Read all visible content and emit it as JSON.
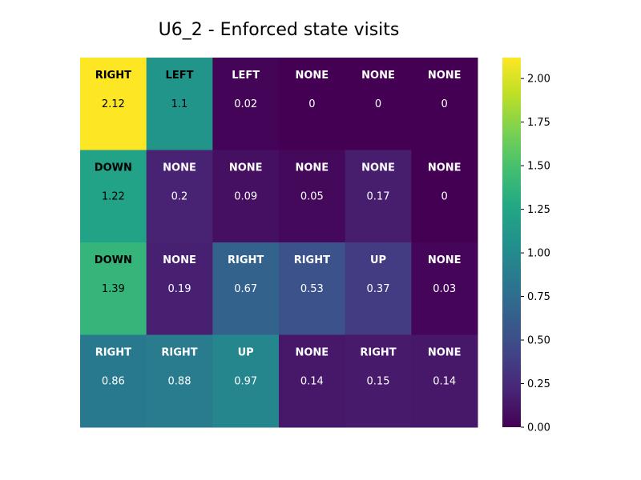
{
  "chart_data": {
    "type": "heatmap",
    "title": "U6_2 - Enforced state visits",
    "colormap": "viridis",
    "vmin": 0.0,
    "vmax": 2.12,
    "rows": 4,
    "cols": 6,
    "values": [
      [
        2.12,
        1.1,
        0.02,
        0,
        0,
        0
      ],
      [
        1.22,
        0.2,
        0.09,
        0.05,
        0.17,
        0
      ],
      [
        1.39,
        0.19,
        0.67,
        0.53,
        0.37,
        0.03
      ],
      [
        0.86,
        0.88,
        0.97,
        0.14,
        0.15,
        0.14
      ]
    ],
    "actions": [
      [
        "RIGHT",
        "LEFT",
        "LEFT",
        "NONE",
        "NONE",
        "NONE"
      ],
      [
        "DOWN",
        "NONE",
        "NONE",
        "NONE",
        "NONE",
        "NONE"
      ],
      [
        "DOWN",
        "NONE",
        "RIGHT",
        "RIGHT",
        "UP",
        "NONE"
      ],
      [
        "RIGHT",
        "RIGHT",
        "UP",
        "NONE",
        "RIGHT",
        "NONE"
      ]
    ],
    "value_labels": [
      [
        "2.12",
        "1.1",
        "0.02",
        "0",
        "0",
        "0"
      ],
      [
        "1.22",
        "0.2",
        "0.09",
        "0.05",
        "0.17",
        "0"
      ],
      [
        "1.39",
        "0.19",
        "0.67",
        "0.53",
        "0.37",
        "0.03"
      ],
      [
        "0.86",
        "0.88",
        "0.97",
        "0.14",
        "0.15",
        "0.14"
      ]
    ],
    "colorbar": {
      "ticks": [
        0.0,
        0.25,
        0.5,
        0.75,
        1.0,
        1.25,
        1.5,
        1.75,
        2.0
      ],
      "tick_labels": [
        "0.00",
        "0.25",
        "0.50",
        "0.75",
        "1.00",
        "1.25",
        "1.50",
        "1.75",
        "2.00"
      ]
    },
    "grid": false,
    "xlabel": "",
    "ylabel": ""
  }
}
